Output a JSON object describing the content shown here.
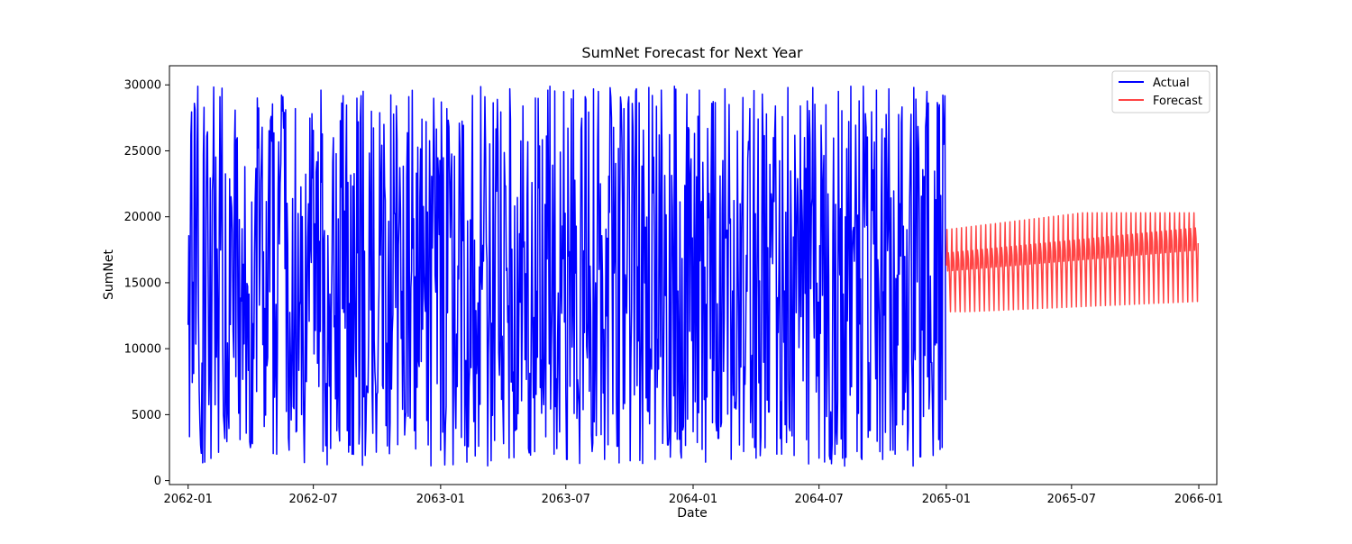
{
  "chart_data": {
    "type": "line",
    "title": "SumNet Forecast for Next Year",
    "xlabel": "Date",
    "ylabel": "SumNet",
    "x_range": [
      "2061-12-05",
      "2066-01-27"
    ],
    "ylim": [
      -300,
      31450
    ],
    "x_ticks": [
      "2062-01",
      "2062-07",
      "2063-01",
      "2063-07",
      "2064-01",
      "2064-07",
      "2065-01",
      "2065-07",
      "2066-01"
    ],
    "y_ticks": [
      0,
      5000,
      10000,
      15000,
      20000,
      25000,
      30000
    ],
    "grid": false,
    "legend": {
      "placement": "top-right"
    },
    "series": [
      {
        "name": "Actual",
        "color": "#0000ff",
        "start": "2062-01-01",
        "end": "2064-12-31",
        "step": "daily",
        "sample_values": [
          11800,
          28600,
          2700,
          26100,
          1700,
          29100,
          6200,
          18800,
          5100,
          23800,
          2900,
          29000,
          4100,
          27300,
          2000,
          29100,
          2300,
          28200,
          5000,
          18400,
          9600,
          29600,
          1200,
          26000,
          3000,
          23300,
          2000,
          27200,
          1900,
          28000,
          6700,
          27000,
          4400,
          28400,
          5400,
          29100,
          2400,
          27400,
          2700,
          25000,
          2300,
          28200,
          1200,
          27100,
          9100,
          29200,
          2600,
          29100,
          1500,
          28900,
          2800,
          29700,
          3900,
          28400,
          2100,
          29000,
          5100,
          29600,
          2000,
          24900,
          1600,
          29600,
          1300,
          28900,
          2200,
          29500,
          1600,
          29100,
          2600,
          28200,
          1500,
          29700,
          1300,
          29800,
          1600,
          29600,
          2700,
          29900,
          2200,
          29300,
          3700,
          29600,
          1400,
          28600,
          3200,
          29700,
          1600,
          26500,
          2200,
          28200,
          1700,
          29300,
          5200,
          28400,
          2000,
          29800,
          1900,
          28400,
          3100,
          29800,
          1700,
          28500,
          2800,
          29500,
          1100,
          29900,
          2200,
          29900,
          3800,
          29600,
          1600,
          29700,
          2000,
          27100,
          2300,
          29800,
          1800,
          29500,
          1900,
          28500,
          6100
        ],
        "min": 1100,
        "max": 29900,
        "mean": 15000
      },
      {
        "name": "Forecast",
        "color": "#ff4444",
        "start": "2065-01-01",
        "end": "2065-12-31",
        "step": "daily",
        "cycle_days": 7,
        "sample_values": [
          16000,
          19000,
          13700,
          18000,
          13100,
          17900,
          12900,
          19100,
          13000,
          19200,
          13100,
          19300,
          13300,
          19500,
          13600,
          19700,
          13800,
          19900,
          14000,
          20000,
          14100,
          20200,
          14200,
          20200,
          18400
        ],
        "min": 12800,
        "max": 20300,
        "trend_start": 16300,
        "trend_end": 18000
      }
    ]
  }
}
